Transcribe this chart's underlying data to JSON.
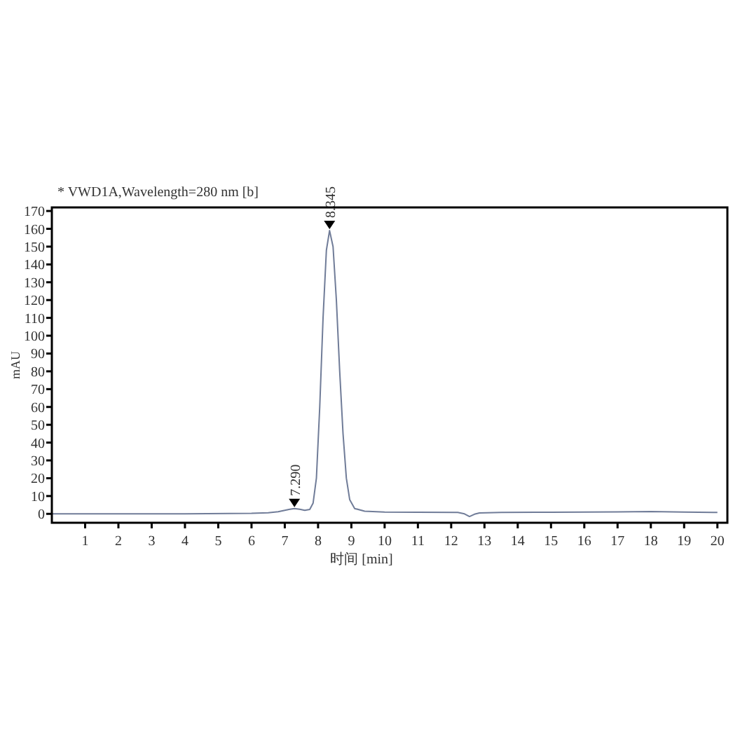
{
  "chart_data": {
    "type": "line",
    "title": "* VWD1A,Wavelength=280 nm [b]",
    "xlabel": "时间 [min]",
    "ylabel": "mAU",
    "xlim": [
      0,
      20.3
    ],
    "ylim": [
      -5,
      172
    ],
    "xticks": [
      1,
      2,
      3,
      4,
      5,
      6,
      7,
      8,
      9,
      10,
      11,
      12,
      13,
      14,
      15,
      16,
      17,
      18,
      19,
      20
    ],
    "yticks": [
      0,
      10,
      20,
      30,
      40,
      50,
      60,
      70,
      80,
      90,
      100,
      110,
      120,
      130,
      140,
      150,
      160,
      170
    ],
    "series": [
      {
        "color": "#707c98",
        "x": [
          0,
          2,
          4,
          6,
          6.5,
          6.8,
          7.0,
          7.15,
          7.29,
          7.45,
          7.6,
          7.75,
          7.85,
          7.95,
          8.05,
          8.15,
          8.25,
          8.345,
          8.45,
          8.55,
          8.65,
          8.75,
          8.85,
          8.95,
          9.1,
          9.4,
          10,
          11,
          12.2,
          12.4,
          12.55,
          12.7,
          12.85,
          13.5,
          15,
          17,
          18,
          19,
          20
        ],
        "values": [
          0,
          0,
          0,
          0.3,
          0.6,
          1.2,
          2,
          2.6,
          3,
          2.6,
          2,
          2.5,
          6,
          20,
          60,
          110,
          148,
          159,
          150,
          120,
          80,
          45,
          20,
          8,
          3,
          1.5,
          1,
          0.9,
          0.8,
          0,
          -1.5,
          -0.2,
          0.5,
          0.8,
          0.9,
          1.1,
          1.3,
          1,
          0.8
        ]
      }
    ],
    "annotations": [
      {
        "text": "7.290",
        "x": 7.29,
        "y": 3
      },
      {
        "text": "8.345",
        "x": 8.345,
        "y": 159
      }
    ]
  }
}
